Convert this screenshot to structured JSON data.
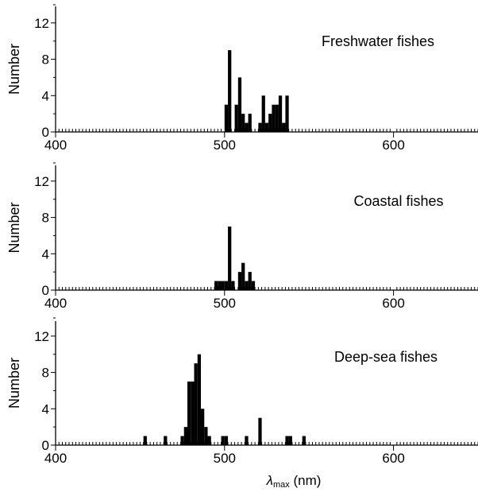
{
  "chart_data": [
    {
      "type": "bar",
      "panel_label": "Freshwater fishes",
      "ylabel": "Number",
      "xlabel": "",
      "xlim": [
        400,
        650
      ],
      "ylim": [
        0,
        14
      ],
      "xticks": [
        "400",
        "500",
        "600"
      ],
      "yticks": [
        "0",
        "4",
        "8",
        "12"
      ],
      "bin_width": 2,
      "x": [
        500,
        502,
        506,
        508,
        510,
        512,
        514,
        520,
        522,
        524,
        526,
        528,
        530,
        532,
        534,
        536,
        538
      ],
      "values": [
        3,
        9,
        3,
        6,
        2,
        1,
        2,
        1,
        4,
        1,
        2,
        3,
        3,
        4,
        1,
        4,
        0
      ]
    },
    {
      "type": "bar",
      "panel_label": "Coastal fishes",
      "ylabel": "Number",
      "xlabel": "",
      "xlim": [
        400,
        650
      ],
      "ylim": [
        0,
        14
      ],
      "xticks": [
        "400",
        "500",
        "600"
      ],
      "yticks": [
        "0",
        "4",
        "8",
        "12"
      ],
      "bin_width": 2,
      "x": [
        494,
        496,
        498,
        500,
        502,
        504,
        508,
        510,
        512,
        514,
        516,
        518
      ],
      "values": [
        1,
        1,
        1,
        1,
        7,
        1,
        2,
        3,
        1,
        2,
        1,
        0
      ]
    },
    {
      "type": "bar",
      "panel_label": "Deep-sea fishes",
      "ylabel": "Number",
      "xlabel": "λmax (nm)",
      "xlim": [
        400,
        650
      ],
      "ylim": [
        0,
        14
      ],
      "xticks": [
        "400",
        "500",
        "600"
      ],
      "yticks": [
        "0",
        "4",
        "8",
        "12"
      ],
      "bin_width": 2,
      "x": [
        452,
        464,
        474,
        476,
        478,
        480,
        482,
        484,
        486,
        488,
        490,
        498,
        500,
        512,
        520,
        536,
        538,
        546
      ],
      "values": [
        1,
        1,
        1,
        2,
        7,
        7,
        9,
        10,
        4,
        2,
        1,
        1,
        1,
        1,
        3,
        1,
        1,
        1
      ]
    }
  ],
  "xlabel_parts": {
    "symbol": "λ",
    "subscript": "max",
    "unit": " (nm)"
  }
}
